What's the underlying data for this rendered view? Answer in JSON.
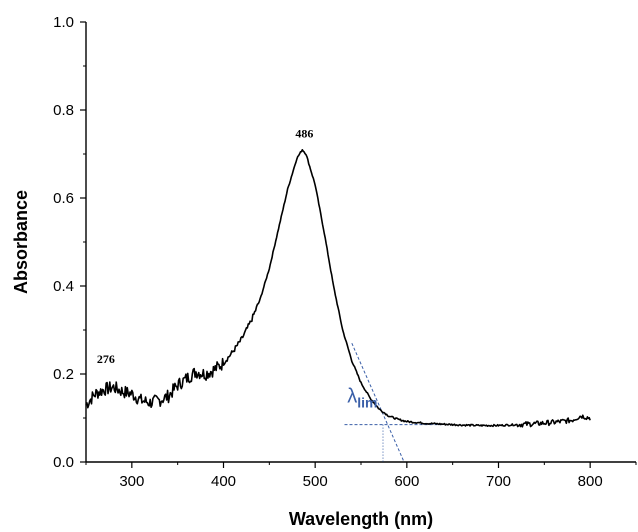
{
  "chart_data": {
    "type": "line",
    "xlabel": "Wavelength (nm)",
    "ylabel": "Absorbance",
    "xlim": [
      250,
      850
    ],
    "ylim": [
      0.0,
      1.0
    ],
    "x_ticks": [
      300,
      400,
      500,
      600,
      700,
      800
    ],
    "y_ticks": [
      0.0,
      0.2,
      0.4,
      0.6,
      0.8,
      1.0
    ],
    "y_tick_labels": [
      "0.0",
      "0.2",
      "0.4",
      "0.6",
      "0.8",
      "1.0"
    ],
    "grid": false,
    "line_color": "#000000",
    "annotation_color": "#3a5fa8",
    "series": [
      {
        "x": [
          250,
          260,
          270,
          280,
          290,
          300,
          310,
          320,
          330,
          340,
          350,
          360,
          370,
          380,
          390,
          400,
          410,
          420,
          430,
          440,
          450,
          460,
          470,
          480,
          486,
          490,
          500,
          510,
          520,
          530,
          540,
          550,
          560,
          570,
          580,
          590,
          600,
          620,
          640,
          660,
          680,
          700,
          720,
          740,
          760,
          780,
          790,
          800
        ],
        "y": [
          0.13,
          0.155,
          0.165,
          0.17,
          0.16,
          0.155,
          0.14,
          0.135,
          0.14,
          0.15,
          0.175,
          0.19,
          0.205,
          0.2,
          0.21,
          0.225,
          0.25,
          0.28,
          0.32,
          0.37,
          0.44,
          0.53,
          0.62,
          0.69,
          0.71,
          0.7,
          0.63,
          0.52,
          0.4,
          0.3,
          0.23,
          0.18,
          0.145,
          0.12,
          0.105,
          0.097,
          0.092,
          0.088,
          0.086,
          0.084,
          0.083,
          0.083,
          0.085,
          0.087,
          0.09,
          0.095,
          0.105,
          0.1
        ]
      }
    ],
    "annotations": {
      "peak_1": {
        "text": "486",
        "x": 486,
        "y": 0.71
      },
      "peak_2": {
        "text": "276",
        "x": 276,
        "y": 0.17
      },
      "lambda": {
        "symbol": "λ",
        "subscript": "lim",
        "x": 568,
        "y": 0.135
      },
      "onset_x": 574,
      "baseline_y": 0.085,
      "tangent": {
        "x1": 540,
        "y1": 0.27,
        "x2": 597,
        "y2": 0.0
      },
      "baseline_line": {
        "x1": 532,
        "x2": 648
      }
    }
  }
}
